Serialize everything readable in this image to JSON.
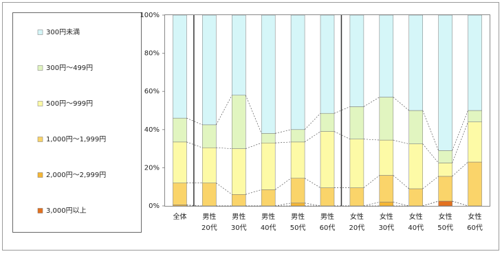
{
  "chart_data": {
    "type": "stacked-bar-100",
    "categories": [
      [
        "全体"
      ],
      [
        "男性",
        "20代"
      ],
      [
        "男性",
        "30代"
      ],
      [
        "男性",
        "40代"
      ],
      [
        "男性",
        "50代"
      ],
      [
        "男性",
        "60代"
      ],
      [
        "女性",
        "20代"
      ],
      [
        "女性",
        "30代"
      ],
      [
        "女性",
        "40代"
      ],
      [
        "女性",
        "50代"
      ],
      [
        "女性",
        "60代"
      ]
    ],
    "series": [
      {
        "name": "3,000円以上",
        "color": "#e3711f",
        "values": [
          0,
          0,
          0,
          0,
          0,
          0,
          0,
          0,
          0,
          2.5,
          0
        ]
      },
      {
        "name": "2,000円～2,999円",
        "color": "#f5b635",
        "values": [
          0.5,
          0,
          0,
          0,
          1.5,
          0,
          0,
          2,
          0,
          0,
          0
        ]
      },
      {
        "name": "1,000円～1,999円",
        "color": "#fad46a",
        "values": [
          11.5,
          12,
          6,
          8.5,
          13,
          9.5,
          9.5,
          14,
          9,
          13,
          23
        ]
      },
      {
        "name": "500円～999円",
        "color": "#fdfaa6",
        "values": [
          21.5,
          18.5,
          24,
          24.5,
          19,
          29.5,
          25.5,
          18.5,
          23.5,
          7,
          21
        ]
      },
      {
        "name": "300円～499円",
        "color": "#e1f5c0",
        "values": [
          12.5,
          12,
          28,
          5,
          6.5,
          9.5,
          17,
          22.5,
          17.5,
          6.5,
          6
        ]
      },
      {
        "name": "300円未満",
        "color": "#d5f6f8",
        "values": [
          54,
          57.5,
          42,
          62,
          60,
          51.5,
          48,
          43,
          50,
          71,
          50
        ]
      }
    ],
    "ylim": [
      0,
      100
    ],
    "yticks": [
      {
        "value": 0,
        "label": "0%"
      },
      {
        "value": 20,
        "label": "20%"
      },
      {
        "value": 40,
        "label": "40%"
      },
      {
        "value": 60,
        "label": "60%"
      },
      {
        "value": 80,
        "label": "80%"
      },
      {
        "value": 100,
        "label": "100%"
      }
    ]
  }
}
